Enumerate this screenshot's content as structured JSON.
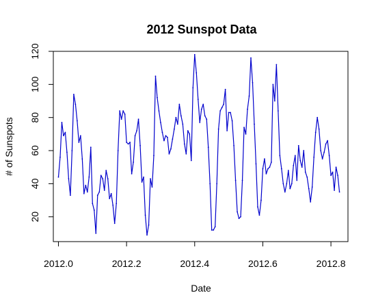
{
  "chart_data": {
    "type": "line",
    "title": "2012 Sunspot Data",
    "xlabel": "Date",
    "ylabel": "# of Sunspots",
    "xlim": [
      2000.0,
      2012.83
    ],
    "ylim": [
      5,
      120
    ],
    "xticks": [
      2012.0,
      2012.2,
      2012.4,
      2012.6,
      2012.8
    ],
    "xtick_labels": [
      "2012.0",
      "2012.2",
      "2012.4",
      "2012.6",
      "2012.8"
    ],
    "yticks": [
      20,
      40,
      60,
      80,
      100,
      120
    ],
    "ytick_labels": [
      "20",
      "40",
      "60",
      "80",
      "100",
      "120"
    ],
    "grid": false,
    "line_color": "#0000cc",
    "series": [
      {
        "x": [
          2012.0,
          2012.005,
          2012.01,
          2012.015,
          2012.02,
          2012.025,
          2012.03,
          2012.035,
          2012.04,
          2012.045,
          2012.05,
          2012.055,
          2012.06,
          2012.065,
          2012.07,
          2012.075,
          2012.08,
          2012.085,
          2012.09,
          2012.095,
          2012.1,
          2012.105,
          2012.11,
          2012.115,
          2012.12,
          2012.125,
          2012.13,
          2012.135,
          2012.14,
          2012.145,
          2012.15,
          2012.155,
          2012.16,
          2012.165,
          2012.17,
          2012.175,
          2012.18,
          2012.185,
          2012.19,
          2012.195,
          2012.2,
          2012.205,
          2012.21,
          2012.215,
          2012.22,
          2012.225,
          2012.23,
          2012.235,
          2012.24,
          2012.245,
          2012.25,
          2012.255,
          2012.26,
          2012.265,
          2012.27,
          2012.275,
          2012.28,
          2012.285,
          2012.29,
          2012.295,
          2012.3,
          2012.305,
          2012.31,
          2012.315,
          2012.32,
          2012.325,
          2012.33,
          2012.335,
          2012.34,
          2012.345,
          2012.35,
          2012.355,
          2012.36,
          2012.365,
          2012.37,
          2012.375,
          2012.38,
          2012.385,
          2012.39,
          2012.395,
          2012.4,
          2012.405,
          2012.41,
          2012.415,
          2012.42,
          2012.425,
          2012.43,
          2012.435,
          2012.44,
          2012.445,
          2012.45,
          2012.455,
          2012.46,
          2012.465,
          2012.47,
          2012.475,
          2012.48,
          2012.485,
          2012.49,
          2012.495,
          2012.5,
          2012.505,
          2012.51,
          2012.515,
          2012.52,
          2012.525,
          2012.53,
          2012.535,
          2012.54,
          2012.545,
          2012.55,
          2012.555,
          2012.56,
          2012.565,
          2012.57,
          2012.575,
          2012.58,
          2012.585,
          2012.59,
          2012.595,
          2012.6,
          2012.605,
          2012.61,
          2012.615,
          2012.62,
          2012.625,
          2012.63,
          2012.635,
          2012.64,
          2012.645,
          2012.65,
          2012.655,
          2012.66,
          2012.665,
          2012.67,
          2012.675,
          2012.68,
          2012.685,
          2012.69,
          2012.695,
          2012.7,
          2012.705,
          2012.71,
          2012.715,
          2012.72,
          2012.725,
          2012.73,
          2012.735,
          2012.74,
          2012.745,
          2012.75,
          2012.755,
          2012.76,
          2012.765,
          2012.77,
          2012.775,
          2012.78,
          2012.785,
          2012.79,
          2012.795,
          2012.8,
          2012.805,
          2012.81,
          2012.815,
          2012.82,
          2012.825
        ],
        "values": [
          44,
          56,
          77,
          69,
          71,
          59,
          43,
          33,
          60,
          94,
          88,
          78,
          65,
          69,
          55,
          34,
          39,
          35,
          44,
          62,
          28,
          24,
          10,
          33,
          35,
          45,
          43,
          36,
          48,
          43,
          31,
          34,
          27,
          16,
          28,
          60,
          84,
          79,
          84,
          82,
          65,
          64,
          65,
          46,
          53,
          69,
          72,
          79,
          63,
          41,
          44,
          21,
          9,
          15,
          43,
          38,
          57,
          105,
          92,
          84,
          77,
          71,
          66,
          69,
          68,
          58,
          61,
          67,
          73,
          80,
          76,
          88,
          81,
          76,
          64,
          58,
          72,
          70,
          54,
          98,
          118,
          107,
          91,
          77,
          85,
          88,
          81,
          79,
          62,
          40,
          12,
          12,
          14,
          40,
          73,
          84,
          86,
          88,
          97,
          72,
          83,
          83,
          78,
          63,
          42,
          23,
          19,
          20,
          42,
          74,
          70,
          85,
          93,
          116,
          101,
          76,
          52,
          26,
          21,
          30,
          49,
          55,
          46,
          49,
          50,
          53,
          100,
          90,
          112,
          84,
          57,
          49,
          40,
          35,
          40,
          48,
          37,
          40,
          51,
          57,
          42,
          63,
          54,
          50,
          60,
          47,
          44,
          37,
          29,
          38,
          56,
          71,
          80,
          73,
          60,
          55,
          59,
          64,
          66,
          57,
          45,
          47,
          36,
          50,
          45,
          35
        ]
      }
    ]
  }
}
